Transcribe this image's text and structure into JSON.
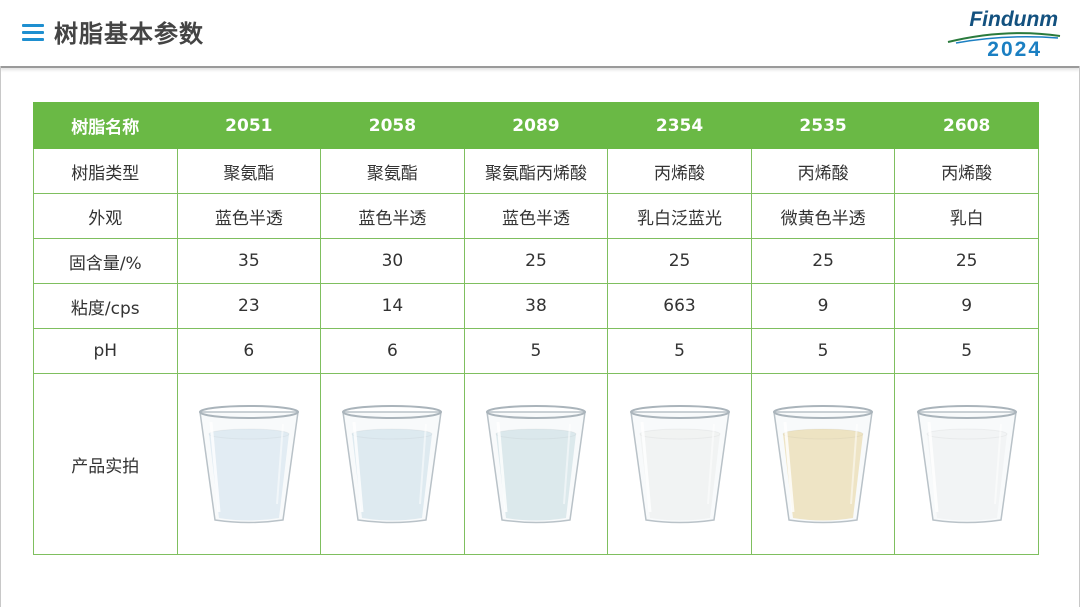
{
  "header": {
    "title": "树脂基本参数",
    "logo_word": "Findunm",
    "logo_year": "2024"
  },
  "table": {
    "header": [
      "树脂名称",
      "2051",
      "2058",
      "2089",
      "2354",
      "2535",
      "2608"
    ],
    "rows": [
      [
        "树脂类型",
        "聚氨酯",
        "聚氨酯",
        "聚氨酯丙烯酸",
        "丙烯酸",
        "丙烯酸",
        "丙烯酸"
      ],
      [
        "外观",
        "蓝色半透",
        "蓝色半透",
        "蓝色半透",
        "乳白泛蓝光",
        "微黄色半透",
        "乳白"
      ],
      [
        "固含量/%",
        "35",
        "30",
        "25",
        "25",
        "25",
        "25"
      ],
      [
        "粘度/cps",
        "23",
        "14",
        "38",
        "663",
        "9",
        "9"
      ],
      [
        "pH",
        "6",
        "6",
        "5",
        "5",
        "5",
        "5"
      ]
    ],
    "photo_row_label": "产品实拍",
    "cup_colors": [
      "#dbe9f2",
      "#d6e6ee",
      "#d3e4e8",
      "#f4f4f2",
      "#efdca8",
      "#f6f6f6"
    ]
  },
  "colors": {
    "accent_green": "#6ab945",
    "menu_blue": "#1e8fd0",
    "logo_navy": "#13517f"
  }
}
